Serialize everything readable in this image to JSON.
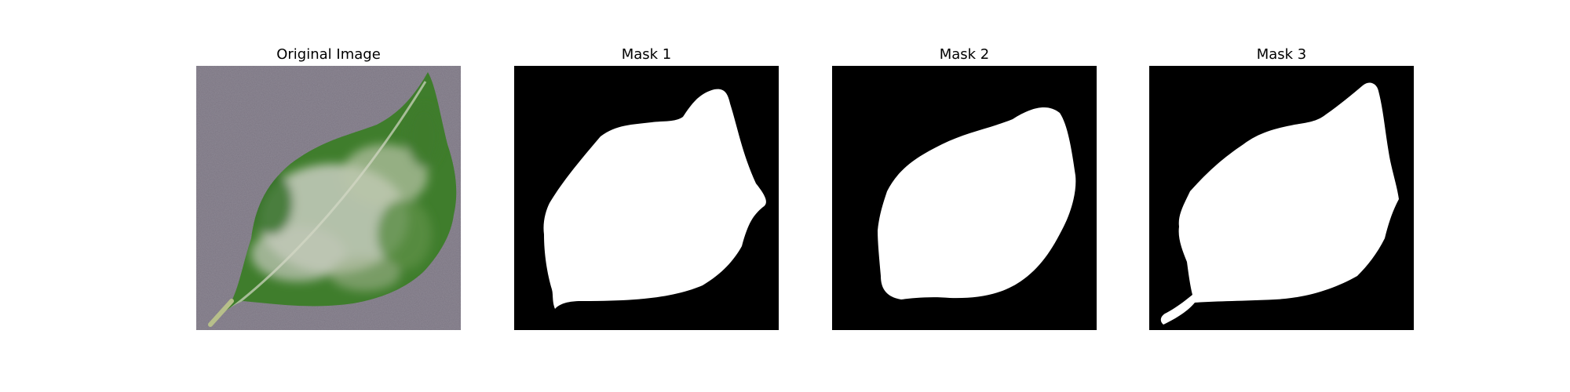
{
  "figure": {
    "panels": [
      {
        "title": "Original Image",
        "kind": "photo",
        "subject": "leaf-icon"
      },
      {
        "title": "Mask 1",
        "kind": "binary-mask"
      },
      {
        "title": "Mask 2",
        "kind": "binary-mask"
      },
      {
        "title": "Mask 3",
        "kind": "binary-mask"
      }
    ]
  },
  "colors": {
    "page_background": "#ffffff",
    "photo_background": "#7b7582",
    "leaf_green": "#3f7d2c",
    "leaf_pale": "#c8ccc0",
    "mask_background": "#000000",
    "mask_foreground": "#ffffff"
  }
}
